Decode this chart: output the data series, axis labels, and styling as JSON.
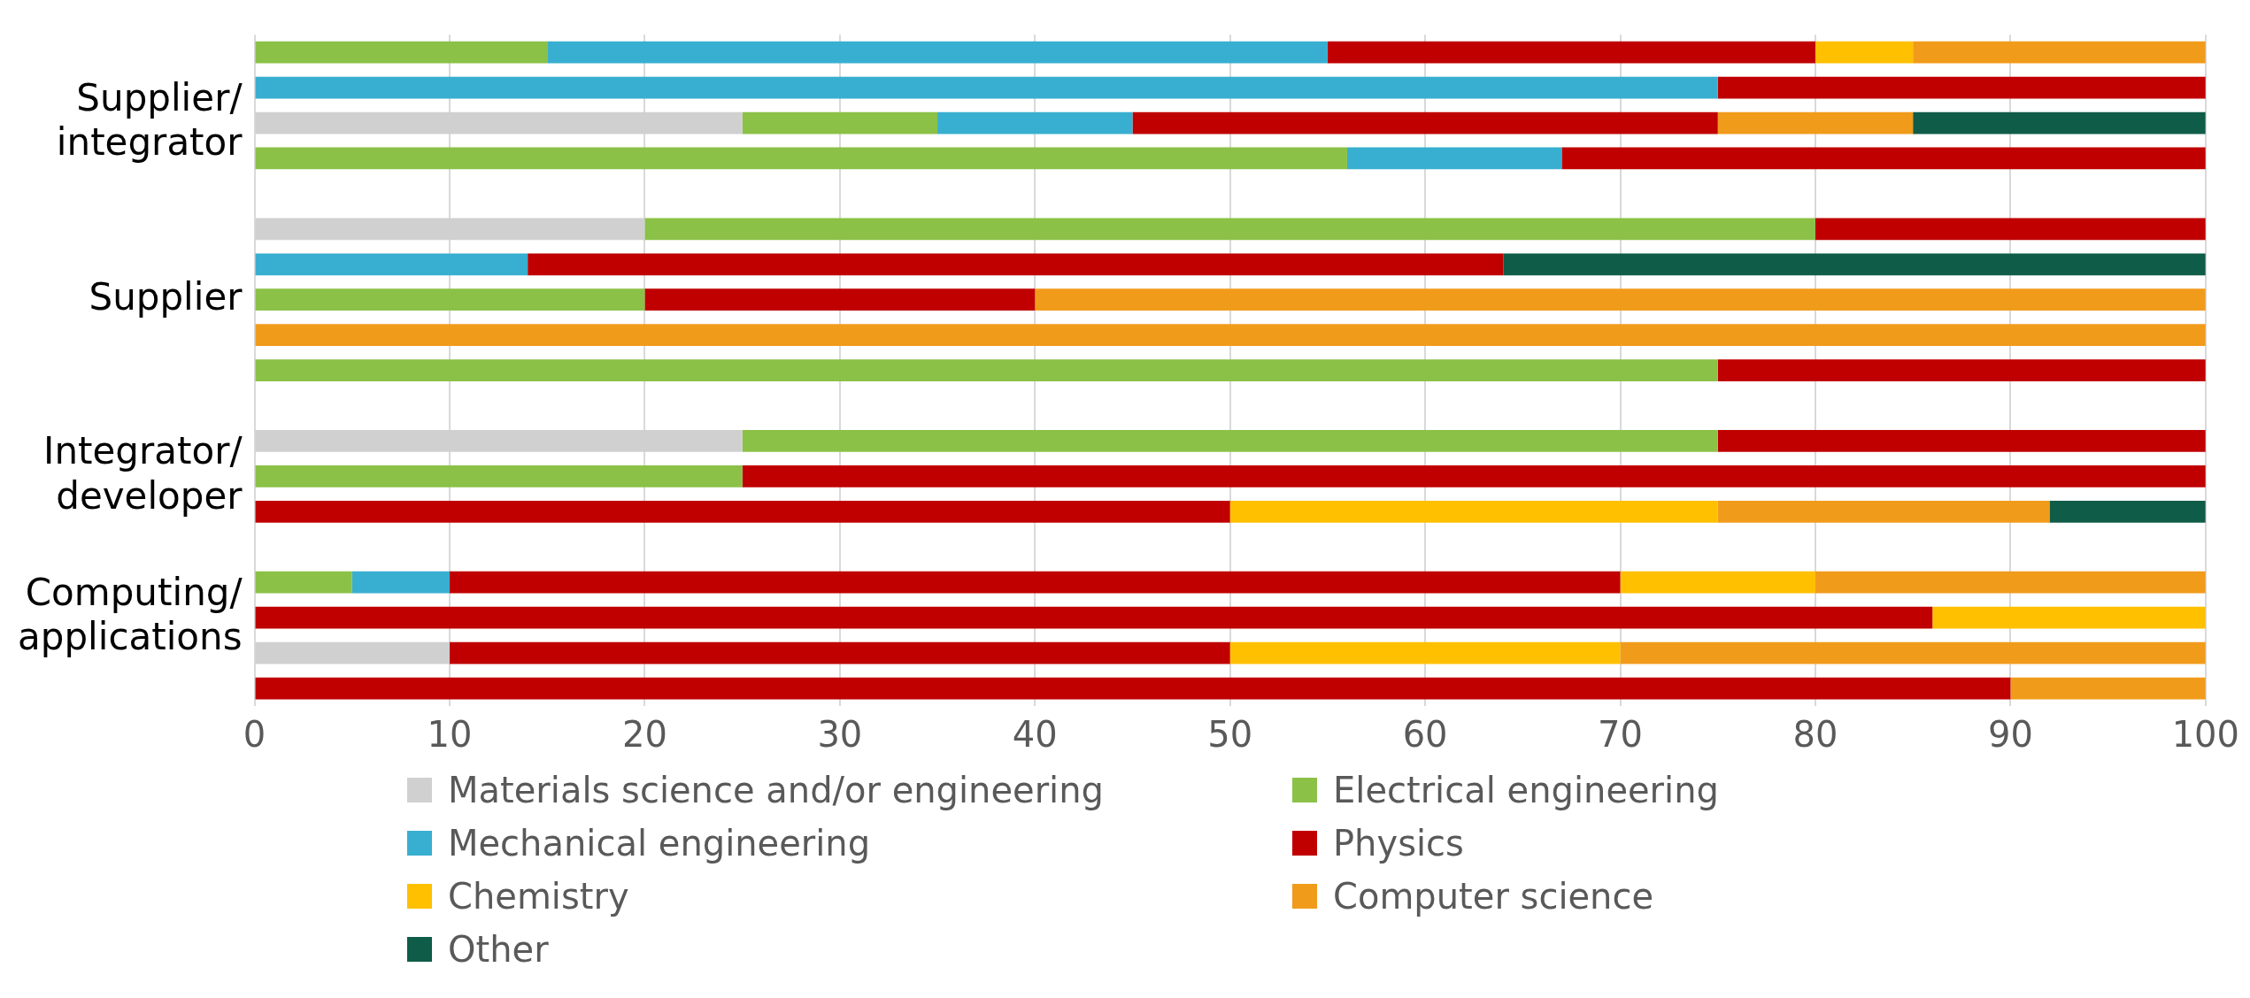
{
  "chart_data": {
    "type": "bar",
    "orientation": "horizontal",
    "stacked": true,
    "categories": [
      null,
      null,
      "Supplier/\nintegrator",
      null,
      null,
      null,
      null,
      "Supplier",
      null,
      null,
      null,
      null,
      "Integrator/\ndeveloper",
      null,
      null,
      null,
      "Computing/\napplications",
      null,
      null
    ],
    "series": [
      {
        "name": "Materials science and/or engineering",
        "color": "#d0d0d0",
        "values": [
          null,
          null,
          25,
          null,
          null,
          20,
          null,
          null,
          null,
          null,
          null,
          25,
          null,
          null,
          null,
          null,
          null,
          10,
          null
        ]
      },
      {
        "name": "Electrical engineering",
        "color": "#8bc147",
        "values": [
          15,
          null,
          10,
          56,
          null,
          60,
          null,
          20,
          null,
          75,
          null,
          50,
          25,
          null,
          null,
          5,
          null,
          null,
          null
        ]
      },
      {
        "name": "Mechanical engineering",
        "color": "#38afd0",
        "values": [
          40,
          75,
          10,
          11,
          null,
          null,
          14,
          null,
          null,
          null,
          null,
          null,
          null,
          null,
          null,
          5,
          null,
          null,
          null
        ]
      },
      {
        "name": "Physics",
        "color": "#c00000",
        "values": [
          25,
          25,
          30,
          33,
          null,
          20,
          50,
          20,
          null,
          25,
          null,
          25,
          75,
          50,
          null,
          60,
          86,
          40,
          90
        ]
      },
      {
        "name": "Chemistry",
        "color": "#ffc000",
        "values": [
          5,
          null,
          null,
          null,
          null,
          null,
          null,
          null,
          null,
          null,
          null,
          null,
          null,
          25,
          null,
          10,
          14,
          20,
          null
        ]
      },
      {
        "name": "Computer science",
        "color": "#f19b1b",
        "values": [
          15,
          null,
          10,
          null,
          null,
          null,
          null,
          60,
          100,
          null,
          null,
          null,
          null,
          17,
          null,
          20,
          null,
          30,
          10
        ]
      },
      {
        "name": "Other",
        "color": "#0f5c48",
        "values": [
          null,
          null,
          15,
          null,
          null,
          null,
          36,
          null,
          null,
          null,
          null,
          null,
          null,
          8,
          null,
          null,
          null,
          null,
          null
        ]
      }
    ],
    "xlim": [
      0,
      100
    ],
    "xticks": [
      0,
      10,
      20,
      30,
      40,
      50,
      60,
      70,
      80,
      90,
      100
    ],
    "grid": "x",
    "legend": "bottom"
  }
}
